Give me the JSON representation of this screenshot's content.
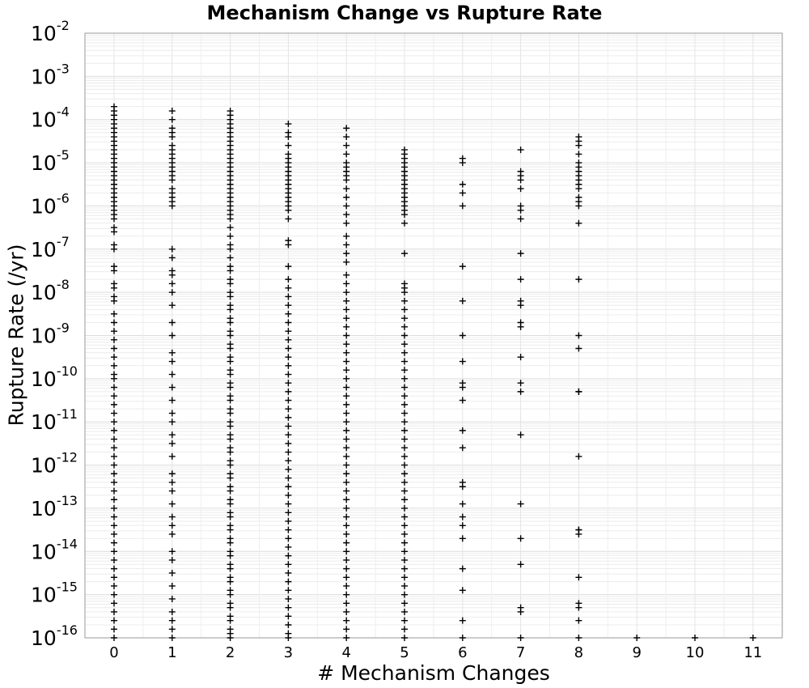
{
  "chart_data": {
    "type": "scatter",
    "title": "Mechanism Change vs Rupture Rate",
    "xlabel": "# Mechanism Changes",
    "ylabel": "Rupture Rate (/yr)",
    "x_ticks": [
      "0",
      "1",
      "2",
      "3",
      "4",
      "5",
      "6",
      "7",
      "8",
      "9",
      "10",
      "11"
    ],
    "y_scale": "log",
    "ylim": [
      1e-16,
      0.01
    ],
    "y_ticks": [
      {
        "base": "10",
        "exp": "-2"
      },
      {
        "base": "10",
        "exp": "-3"
      },
      {
        "base": "10",
        "exp": "-4"
      },
      {
        "base": "10",
        "exp": "-5"
      },
      {
        "base": "10",
        "exp": "-6"
      },
      {
        "base": "10",
        "exp": "-7"
      },
      {
        "base": "10",
        "exp": "-8"
      },
      {
        "base": "10",
        "exp": "-9"
      },
      {
        "base": "10",
        "exp": "-10"
      },
      {
        "base": "10",
        "exp": "-11"
      },
      {
        "base": "10",
        "exp": "-12"
      },
      {
        "base": "10",
        "exp": "-13"
      },
      {
        "base": "10",
        "exp": "-14"
      },
      {
        "base": "10",
        "exp": "-15"
      },
      {
        "base": "10",
        "exp": "-16"
      }
    ],
    "grid": true,
    "marker": "+",
    "marker_color": "#000000",
    "series": [
      {
        "x": 0,
        "log10_y": [
          -3.7,
          -3.8,
          -3.9,
          -4.0,
          -4.1,
          -4.2,
          -4.3,
          -4.4,
          -4.5,
          -4.6,
          -4.7,
          -4.8,
          -4.9,
          -5.0,
          -5.1,
          -5.2,
          -5.3,
          -5.4,
          -5.5,
          -5.6,
          -5.7,
          -5.8,
          -5.9,
          -6.0,
          -6.1,
          -6.2,
          -6.3,
          -6.5,
          -6.6,
          -6.9,
          -7.0,
          -7.4,
          -7.5,
          -7.8,
          -7.9,
          -8.1,
          -8.2,
          -8.5,
          -8.7,
          -8.9,
          -9.1,
          -9.3,
          -9.5,
          -9.7,
          -9.9,
          -10.0,
          -10.2,
          -10.4,
          -10.6,
          -10.8,
          -11.0,
          -11.2,
          -11.4,
          -11.6,
          -11.8,
          -12.0,
          -12.2,
          -12.4,
          -12.6,
          -12.8,
          -13.0,
          -13.2,
          -13.4,
          -13.6,
          -13.8,
          -14.0,
          -14.2,
          -14.4,
          -14.6,
          -14.8,
          -15.0,
          -15.2,
          -15.4,
          -15.6,
          -15.8,
          -16.0
        ]
      },
      {
        "x": 1,
        "log10_y": [
          -3.8,
          -4.0,
          -4.2,
          -4.3,
          -4.4,
          -4.6,
          -4.7,
          -4.8,
          -4.9,
          -5.0,
          -5.1,
          -5.2,
          -5.3,
          -5.4,
          -5.6,
          -5.7,
          -5.8,
          -5.9,
          -6.0,
          -7.0,
          -7.2,
          -7.5,
          -7.6,
          -7.8,
          -8.0,
          -8.3,
          -8.7,
          -9.0,
          -9.4,
          -9.6,
          -9.9,
          -10.2,
          -10.5,
          -10.8,
          -11.0,
          -11.3,
          -11.5,
          -11.8,
          -12.2,
          -12.4,
          -12.6,
          -12.9,
          -13.2,
          -13.4,
          -13.6,
          -14.0,
          -14.2,
          -14.5,
          -14.8,
          -15.1,
          -15.4,
          -15.6,
          -15.8,
          -16.0
        ]
      },
      {
        "x": 2,
        "log10_y": [
          -3.8,
          -3.9,
          -4.0,
          -4.1,
          -4.2,
          -4.3,
          -4.4,
          -4.5,
          -4.6,
          -4.7,
          -4.8,
          -4.9,
          -5.0,
          -5.1,
          -5.2,
          -5.3,
          -5.4,
          -5.5,
          -5.6,
          -5.7,
          -5.8,
          -5.9,
          -6.0,
          -6.1,
          -6.2,
          -6.3,
          -6.5,
          -6.7,
          -6.9,
          -7.0,
          -7.2,
          -7.4,
          -7.5,
          -7.7,
          -7.8,
          -8.0,
          -8.1,
          -8.3,
          -8.4,
          -8.6,
          -8.7,
          -8.9,
          -9.0,
          -9.2,
          -9.3,
          -9.5,
          -9.6,
          -9.8,
          -9.9,
          -10.1,
          -10.2,
          -10.4,
          -10.5,
          -10.7,
          -10.8,
          -11.0,
          -11.1,
          -11.3,
          -11.4,
          -11.6,
          -11.7,
          -11.9,
          -12.0,
          -12.2,
          -12.3,
          -12.5,
          -12.6,
          -12.8,
          -12.9,
          -13.1,
          -13.2,
          -13.4,
          -13.5,
          -13.7,
          -13.8,
          -14.0,
          -14.1,
          -14.3,
          -14.4,
          -14.6,
          -14.7,
          -14.9,
          -15.0,
          -15.2,
          -15.3,
          -15.5,
          -15.6,
          -15.8,
          -15.9,
          -16.0
        ]
      },
      {
        "x": 3,
        "log10_y": [
          -4.1,
          -4.3,
          -4.4,
          -4.6,
          -4.8,
          -4.9,
          -5.0,
          -5.1,
          -5.2,
          -5.3,
          -5.4,
          -5.5,
          -5.6,
          -5.7,
          -5.8,
          -5.9,
          -6.0,
          -6.1,
          -6.3,
          -6.8,
          -6.9,
          -7.4,
          -7.7,
          -7.9,
          -8.1,
          -8.3,
          -8.5,
          -8.7,
          -8.9,
          -9.1,
          -9.3,
          -9.5,
          -9.7,
          -9.9,
          -10.1,
          -10.3,
          -10.5,
          -10.7,
          -10.9,
          -11.1,
          -11.3,
          -11.5,
          -11.7,
          -11.9,
          -12.1,
          -12.3,
          -12.5,
          -12.7,
          -12.9,
          -13.1,
          -13.3,
          -13.5,
          -13.7,
          -13.9,
          -14.1,
          -14.3,
          -14.5,
          -14.7,
          -14.9,
          -15.1,
          -15.3,
          -15.5,
          -15.7,
          -15.9,
          -16.0
        ]
      },
      {
        "x": 4,
        "log10_y": [
          -4.2,
          -4.4,
          -4.6,
          -4.8,
          -5.0,
          -5.1,
          -5.2,
          -5.3,
          -5.4,
          -5.6,
          -5.8,
          -6.0,
          -6.2,
          -6.4,
          -6.7,
          -6.9,
          -7.1,
          -7.3,
          -7.6,
          -7.8,
          -8.0,
          -8.2,
          -8.4,
          -8.6,
          -8.8,
          -9.0,
          -9.2,
          -9.4,
          -9.6,
          -9.8,
          -10.0,
          -10.2,
          -10.4,
          -10.6,
          -10.8,
          -11.0,
          -11.2,
          -11.4,
          -11.6,
          -11.8,
          -12.0,
          -12.2,
          -12.4,
          -12.6,
          -12.8,
          -13.0,
          -13.2,
          -13.4,
          -13.6,
          -13.8,
          -14.0,
          -14.2,
          -14.4,
          -14.6,
          -14.8,
          -15.0,
          -15.2,
          -15.4,
          -15.6,
          -15.8,
          -16.0
        ]
      },
      {
        "x": 5,
        "log10_y": [
          -4.7,
          -4.8,
          -4.9,
          -5.0,
          -5.1,
          -5.2,
          -5.3,
          -5.4,
          -5.5,
          -5.6,
          -5.7,
          -5.8,
          -5.9,
          -6.0,
          -6.1,
          -6.2,
          -6.4,
          -7.1,
          -7.8,
          -7.9,
          -8.0,
          -8.2,
          -8.4,
          -8.6,
          -8.8,
          -9.0,
          -9.2,
          -9.4,
          -9.6,
          -9.8,
          -10.0,
          -10.2,
          -10.4,
          -10.6,
          -10.8,
          -11.0,
          -11.2,
          -11.4,
          -11.6,
          -11.8,
          -12.0,
          -12.2,
          -12.4,
          -12.6,
          -12.8,
          -13.0,
          -13.2,
          -13.4,
          -13.6,
          -13.8,
          -14.0,
          -14.2,
          -14.4,
          -14.6,
          -14.8,
          -15.0,
          -15.2,
          -15.4,
          -15.6,
          -15.8,
          -16.0
        ]
      },
      {
        "x": 6,
        "log10_y": [
          -4.9,
          -5.0,
          -5.5,
          -5.7,
          -6.0,
          -7.4,
          -8.2,
          -9.0,
          -9.6,
          -10.1,
          -10.2,
          -10.5,
          -11.2,
          -11.6,
          -12.4,
          -12.5,
          -12.9,
          -13.2,
          -13.4,
          -13.7,
          -14.4,
          -14.9,
          -15.6,
          -16.0
        ]
      },
      {
        "x": 7,
        "log10_y": [
          -4.7,
          -5.2,
          -5.3,
          -5.4,
          -5.6,
          -6.0,
          -6.1,
          -6.3,
          -7.1,
          -7.7,
          -8.2,
          -8.3,
          -8.7,
          -8.8,
          -9.5,
          -10.1,
          -10.3,
          -11.3,
          -12.9,
          -13.7,
          -14.3,
          -15.3,
          -15.4,
          -16.0
        ]
      },
      {
        "x": 8,
        "log10_y": [
          -4.4,
          -4.5,
          -4.6,
          -4.8,
          -5.0,
          -5.1,
          -5.2,
          -5.3,
          -5.4,
          -5.5,
          -5.6,
          -5.8,
          -5.9,
          -6.0,
          -6.4,
          -7.7,
          -9.0,
          -9.3,
          -10.3,
          -10.3,
          -11.8,
          -13.5,
          -13.5,
          -13.6,
          -14.6,
          -15.2,
          -15.3,
          -15.6,
          -16.0
        ]
      },
      {
        "x": 9,
        "log10_y": [
          -16.0
        ]
      },
      {
        "x": 10,
        "log10_y": [
          -16.0
        ]
      },
      {
        "x": 11,
        "log10_y": [
          -16.0
        ]
      }
    ]
  }
}
